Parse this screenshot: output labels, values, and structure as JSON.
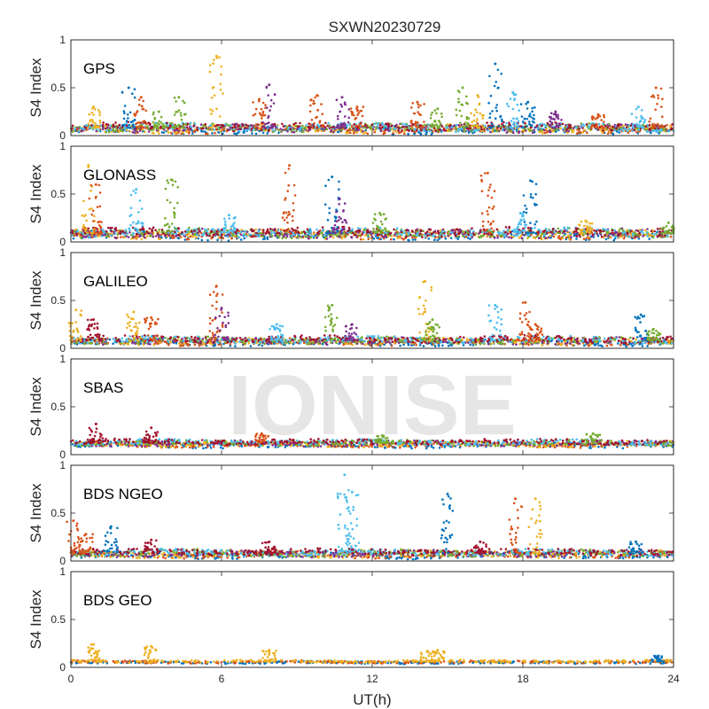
{
  "figure": {
    "title": "SXWN20230729",
    "xlabel": "UT(h)",
    "watermark": "IONISE"
  },
  "chart_data": {
    "type": "scatter",
    "title": "SXWN20230729",
    "xlabel": "UT(h)",
    "ylabel": "S4 Index",
    "xlim": [
      0,
      24
    ],
    "ylim": [
      0,
      1
    ],
    "xticks": [
      0,
      6,
      12,
      18,
      24
    ],
    "yticks": [
      0,
      0.5,
      1
    ],
    "xtick_labels": [
      "0",
      "6",
      "12",
      "18",
      "24"
    ],
    "ytick_labels": [
      "0",
      "0.5",
      "1"
    ],
    "grid": false,
    "colors": [
      "#0072BD",
      "#D95319",
      "#EDB120",
      "#7E2F8E",
      "#77AC30",
      "#4DBEEE",
      "#A2142F"
    ],
    "panels": [
      {
        "name": "GPS",
        "baseline": 0.08,
        "noise": 0.035,
        "peaks": [
          {
            "x": 0.9,
            "y": 0.3,
            "c": 2
          },
          {
            "x": 2.3,
            "y": 0.5,
            "c": 0
          },
          {
            "x": 2.8,
            "y": 0.4,
            "c": 1
          },
          {
            "x": 3.5,
            "y": 0.25,
            "c": 4
          },
          {
            "x": 4.3,
            "y": 0.4,
            "c": 4
          },
          {
            "x": 5.8,
            "y": 0.83,
            "c": 2
          },
          {
            "x": 7.5,
            "y": 0.38,
            "c": 1
          },
          {
            "x": 7.9,
            "y": 0.53,
            "c": 3
          },
          {
            "x": 9.8,
            "y": 0.42,
            "c": 1
          },
          {
            "x": 10.8,
            "y": 0.4,
            "c": 3
          },
          {
            "x": 11.4,
            "y": 0.3,
            "c": 1
          },
          {
            "x": 13.8,
            "y": 0.35,
            "c": 1
          },
          {
            "x": 14.6,
            "y": 0.28,
            "c": 4
          },
          {
            "x": 15.6,
            "y": 0.5,
            "c": 4
          },
          {
            "x": 16.2,
            "y": 0.42,
            "c": 2
          },
          {
            "x": 16.9,
            "y": 0.75,
            "c": 0
          },
          {
            "x": 17.6,
            "y": 0.45,
            "c": 5
          },
          {
            "x": 18.2,
            "y": 0.35,
            "c": 0
          },
          {
            "x": 19.3,
            "y": 0.25,
            "c": 3
          },
          {
            "x": 21.0,
            "y": 0.22,
            "c": 1
          },
          {
            "x": 22.6,
            "y": 0.3,
            "c": 5
          },
          {
            "x": 23.3,
            "y": 0.5,
            "c": 1
          }
        ]
      },
      {
        "name": "GLONASS",
        "baseline": 0.09,
        "noise": 0.04,
        "peaks": [
          {
            "x": 0.7,
            "y": 0.8,
            "c": 2
          },
          {
            "x": 1.0,
            "y": 0.6,
            "c": 1
          },
          {
            "x": 2.6,
            "y": 0.55,
            "c": 5
          },
          {
            "x": 4.0,
            "y": 0.65,
            "c": 4
          },
          {
            "x": 6.3,
            "y": 0.28,
            "c": 5
          },
          {
            "x": 8.7,
            "y": 0.8,
            "c": 1
          },
          {
            "x": 10.4,
            "y": 0.68,
            "c": 0
          },
          {
            "x": 10.7,
            "y": 0.45,
            "c": 3
          },
          {
            "x": 12.3,
            "y": 0.3,
            "c": 4
          },
          {
            "x": 16.6,
            "y": 0.72,
            "c": 1
          },
          {
            "x": 18.3,
            "y": 0.64,
            "c": 0
          },
          {
            "x": 17.9,
            "y": 0.3,
            "c": 5
          },
          {
            "x": 20.5,
            "y": 0.22,
            "c": 2
          },
          {
            "x": 23.8,
            "y": 0.2,
            "c": 4
          }
        ]
      },
      {
        "name": "GALILEO",
        "baseline": 0.08,
        "noise": 0.03,
        "peaks": [
          {
            "x": 0.2,
            "y": 0.4,
            "c": 2
          },
          {
            "x": 0.9,
            "y": 0.3,
            "c": 6
          },
          {
            "x": 2.5,
            "y": 0.38,
            "c": 2
          },
          {
            "x": 3.2,
            "y": 0.32,
            "c": 1
          },
          {
            "x": 5.8,
            "y": 0.65,
            "c": 1
          },
          {
            "x": 6.0,
            "y": 0.42,
            "c": 3
          },
          {
            "x": 8.2,
            "y": 0.25,
            "c": 5
          },
          {
            "x": 10.4,
            "y": 0.45,
            "c": 4
          },
          {
            "x": 11.2,
            "y": 0.25,
            "c": 3
          },
          {
            "x": 14.1,
            "y": 0.7,
            "c": 2
          },
          {
            "x": 14.4,
            "y": 0.3,
            "c": 4
          },
          {
            "x": 16.9,
            "y": 0.45,
            "c": 5
          },
          {
            "x": 18.1,
            "y": 0.48,
            "c": 1
          },
          {
            "x": 18.5,
            "y": 0.25,
            "c": 1
          },
          {
            "x": 22.7,
            "y": 0.35,
            "c": 0
          },
          {
            "x": 23.2,
            "y": 0.2,
            "c": 4
          }
        ]
      },
      {
        "name": "SBAS",
        "baseline": 0.12,
        "noise": 0.025,
        "peaks": [
          {
            "x": 1.0,
            "y": 0.32,
            "c": 6
          },
          {
            "x": 3.2,
            "y": 0.28,
            "c": 6
          },
          {
            "x": 7.6,
            "y": 0.22,
            "c": 1
          },
          {
            "x": 12.4,
            "y": 0.2,
            "c": 4
          },
          {
            "x": 20.8,
            "y": 0.22,
            "c": 4
          }
        ]
      },
      {
        "name": "BDS NGEO",
        "baseline": 0.08,
        "noise": 0.03,
        "peaks": [
          {
            "x": 0.1,
            "y": 0.42,
            "c": 1
          },
          {
            "x": 0.6,
            "y": 0.28,
            "c": 1
          },
          {
            "x": 1.6,
            "y": 0.36,
            "c": 0
          },
          {
            "x": 3.2,
            "y": 0.22,
            "c": 6
          },
          {
            "x": 7.9,
            "y": 0.2,
            "c": 6
          },
          {
            "x": 10.9,
            "y": 0.9,
            "c": 5
          },
          {
            "x": 11.2,
            "y": 0.72,
            "c": 5
          },
          {
            "x": 15.0,
            "y": 0.7,
            "c": 0
          },
          {
            "x": 16.3,
            "y": 0.2,
            "c": 6
          },
          {
            "x": 17.7,
            "y": 0.65,
            "c": 1
          },
          {
            "x": 18.5,
            "y": 0.65,
            "c": 2
          },
          {
            "x": 22.5,
            "y": 0.2,
            "c": 0
          }
        ]
      },
      {
        "name": "BDS GEO",
        "baseline": 0.06,
        "noise": 0.012,
        "peaks": [
          {
            "x": 0.9,
            "y": 0.24,
            "c": 2
          },
          {
            "x": 3.2,
            "y": 0.22,
            "c": 2
          },
          {
            "x": 7.9,
            "y": 0.18,
            "c": 2
          },
          {
            "x": 14.2,
            "y": 0.17,
            "c": 2
          },
          {
            "x": 14.6,
            "y": 0.18,
            "c": 2
          },
          {
            "x": 23.4,
            "y": 0.12,
            "c": 0
          }
        ]
      }
    ]
  }
}
